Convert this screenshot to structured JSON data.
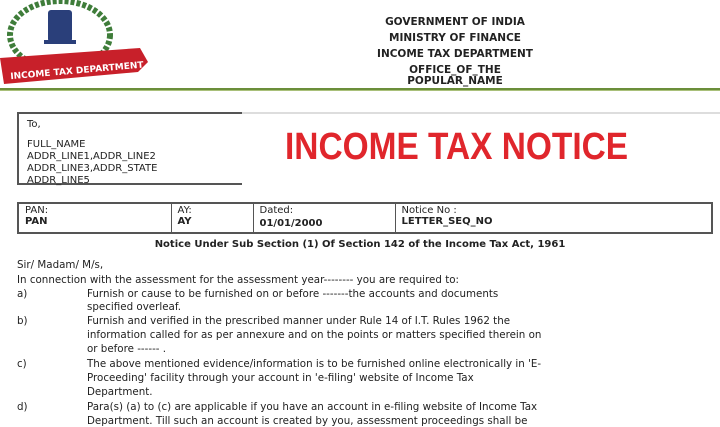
{
  "logo": {
    "ribbon_text": "INCOME TAX DEPARTMENT",
    "colors": {
      "ribbon": "#c8202a",
      "wreath": "#3f7d3a",
      "emblem": "#2a3f7a"
    }
  },
  "header": {
    "lines": [
      "GOVERNMENT OF INDIA",
      "MINISTRY OF FINANCE",
      "INCOME TAX DEPARTMENT",
      "OFFICE_OF_THE",
      "POPULAR_NAME"
    ]
  },
  "address": {
    "to": "To,",
    "name": "FULL_NAME",
    "lines": [
      "ADDR_LINE1,ADDR_LINE2",
      "ADDR_LINE3,ADDR_STATE",
      "ADDR_LINE5"
    ]
  },
  "title": "INCOME TAX NOTICE",
  "title_color": "#e0262c",
  "info_table": [
    {
      "label": "PAN:",
      "value": "PAN"
    },
    {
      "label": "AY:",
      "value": "AY"
    },
    {
      "label": "Dated:",
      "value": "01/01/2000"
    },
    {
      "label": "Notice No :",
      "value": "LETTER_SEQ_NO"
    }
  ],
  "notice_heading": "Notice Under Sub Section (1) Of Section 142 of the Income Tax Act, 1961",
  "salutation": "Sir/ Madam/ M/s,",
  "intro": "In connection with the assessment for the assessment year--------  you are required to:",
  "items": [
    {
      "label": "a)",
      "lines": [
        " Furnish or cause to be furnished on or before -------the accounts and  documents",
        "specified overleaf."
      ]
    },
    {
      "label": "b)",
      "lines": [
        " Furnish and verified in the prescribed manner under Rule 14 of I.T. Rules 1962 the",
        "information called for as per annexure and on the points or matters specified therein on",
        "or before ------ ."
      ]
    },
    {
      "label": "c)",
      "lines": [
        "The above mentioned evidence/information is to be furnished online electronically in 'E-",
        "Proceeding' facility through your account in 'e-filing' website of Income Tax",
        "Department."
      ]
    },
    {
      "label": "d)",
      "lines": [
        "Para(s) (a) to (c) are applicable if you have an account in e-filing website of Income Tax",
        "Department. Till such an account is created by you, assessment proceedings shall be"
      ]
    }
  ]
}
